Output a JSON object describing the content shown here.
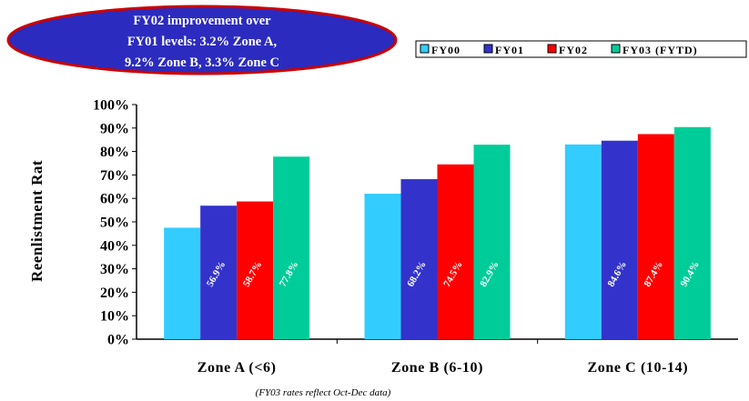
{
  "callout": {
    "lines": [
      "FY02 improvement over",
      "FY01 levels: 3.2% Zone A,",
      "9.2% Zone B, 3.3% Zone C"
    ],
    "fill": "#2b2bbf",
    "border": "#cc0000"
  },
  "footnote": "(FY03 rates reflect Oct-Dec data)",
  "chart_data": {
    "type": "bar",
    "categories": [
      "Zone A (<6)",
      "Zone B (6-10)",
      "Zone C (10-14)"
    ],
    "series": [
      {
        "name": "FY00",
        "color": "#33ccff",
        "values": [
          47.5,
          62.0,
          83.0
        ],
        "labels": [
          "",
          "",
          ""
        ]
      },
      {
        "name": "FY01",
        "color": "#3333cc",
        "values": [
          56.9,
          68.2,
          84.6
        ],
        "labels": [
          "56.9%",
          "68.2%",
          "84.6%"
        ]
      },
      {
        "name": "FY02",
        "color": "#ff0000",
        "values": [
          58.7,
          74.5,
          87.4
        ],
        "labels": [
          "58.7%",
          "74.5%",
          "87.4%"
        ]
      },
      {
        "name": "FY03 (FYTD)",
        "color": "#00cc99",
        "values": [
          77.8,
          82.9,
          90.4
        ],
        "labels": [
          "77.8%",
          "82.9%",
          "90.4%"
        ]
      }
    ],
    "ylabel": "Reenlistment Rat",
    "ylim": [
      0,
      100
    ],
    "yticks": [
      "0%",
      "10%",
      "20%",
      "30%",
      "40%",
      "50%",
      "60%",
      "70%",
      "80%",
      "90%",
      "100%"
    ],
    "grid": false,
    "legend_position": "top-right"
  }
}
